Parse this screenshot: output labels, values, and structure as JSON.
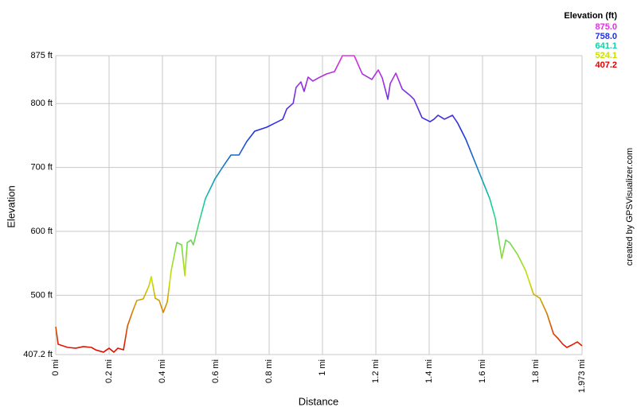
{
  "chart_data": {
    "type": "line",
    "x_label": "Distance",
    "y_label": "Elevation",
    "credit": "created by GPSVisualizer.com",
    "legend_title": "Elevation (ft)",
    "color_scale": [
      {
        "value": 875.0,
        "label": "875.0",
        "color": "#e030e0"
      },
      {
        "value": 758.0,
        "label": "758.0",
        "color": "#2030e0"
      },
      {
        "value": 641.1,
        "label": "641.1",
        "color": "#10d0a0"
      },
      {
        "value": 524.1,
        "label": "524.1",
        "color": "#c8e000"
      },
      {
        "value": 407.2,
        "label": "407.2",
        "color": "#e00000"
      }
    ],
    "grid": true,
    "xlim": [
      0,
      1.973
    ],
    "ylim": [
      407.2,
      875
    ],
    "xticks": [
      {
        "value": 0,
        "label": "0 mi"
      },
      {
        "value": 0.2,
        "label": "0.2 mi"
      },
      {
        "value": 0.4,
        "label": "0.4 mi"
      },
      {
        "value": 0.6,
        "label": "0.6 mi"
      },
      {
        "value": 0.8,
        "label": "0.8 mi"
      },
      {
        "value": 1,
        "label": "1 mi"
      },
      {
        "value": 1.2,
        "label": "1.2 mi"
      },
      {
        "value": 1.4,
        "label": "1.4 mi"
      },
      {
        "value": 1.6,
        "label": "1.6 mi"
      },
      {
        "value": 1.8,
        "label": "1.8 mi"
      },
      {
        "value": 1.973,
        "label": "1.973 mi"
      }
    ],
    "yticks": [
      {
        "value": 407.2,
        "label": "407.2 ft"
      },
      {
        "value": 500,
        "label": "500 ft"
      },
      {
        "value": 600,
        "label": "600 ft"
      },
      {
        "value": 700,
        "label": "700 ft"
      },
      {
        "value": 800,
        "label": "800 ft"
      },
      {
        "value": 875,
        "label": "875 ft"
      }
    ],
    "x": [
      0,
      0.009,
      0.045,
      0.075,
      0.104,
      0.134,
      0.149,
      0.179,
      0.2,
      0.218,
      0.233,
      0.254,
      0.269,
      0.29,
      0.304,
      0.328,
      0.349,
      0.358,
      0.373,
      0.388,
      0.403,
      0.418,
      0.433,
      0.454,
      0.472,
      0.484,
      0.493,
      0.507,
      0.516,
      0.537,
      0.561,
      0.597,
      0.636,
      0.657,
      0.687,
      0.716,
      0.746,
      0.791,
      0.821,
      0.851,
      0.866,
      0.89,
      0.901,
      0.919,
      0.931,
      0.946,
      0.964,
      0.985,
      1.015,
      1.045,
      1.075,
      1.119,
      1.149,
      1.185,
      1.209,
      1.224,
      1.245,
      1.254,
      1.275,
      1.299,
      1.328,
      1.343,
      1.373,
      1.403,
      1.418,
      1.433,
      1.457,
      1.487,
      1.507,
      1.537,
      1.567,
      1.597,
      1.627,
      1.648,
      1.672,
      1.687,
      1.701,
      1.731,
      1.761,
      1.791,
      1.815,
      1.842,
      1.866,
      1.881,
      1.901,
      1.916,
      1.934,
      1.955,
      1.973
    ],
    "values": [
      450.8,
      423.4,
      418.4,
      417.2,
      419.7,
      418.4,
      414.7,
      411.0,
      417.2,
      411.0,
      417.2,
      414.7,
      452.0,
      476.9,
      491.8,
      494.3,
      514.2,
      529.1,
      495.5,
      491.8,
      473.2,
      489.3,
      539.1,
      582.6,
      578.9,
      530.4,
      582.6,
      586.4,
      578.9,
      613.7,
      651.1,
      682.2,
      707.0,
      719.5,
      719.5,
      740.6,
      756.8,
      763.0,
      769.3,
      775.5,
      791.6,
      800.4,
      825.2,
      833.9,
      819.0,
      841.4,
      835.2,
      840.2,
      846.4,
      850.1,
      875.0,
      875.0,
      846.4,
      837.7,
      852.6,
      840.2,
      806.6,
      831.5,
      847.6,
      822.7,
      812.8,
      806.6,
      778.0,
      771.7,
      775.5,
      781.7,
      775.5,
      781.7,
      769.3,
      744.4,
      713.3,
      682.2,
      651.1,
      620.0,
      557.8,
      586.4,
      582.6,
      564.0,
      539.1,
      501.8,
      495.5,
      470.7,
      439.6,
      433.3,
      423.4,
      418.4,
      422.1,
      427.1,
      420.9
    ]
  }
}
